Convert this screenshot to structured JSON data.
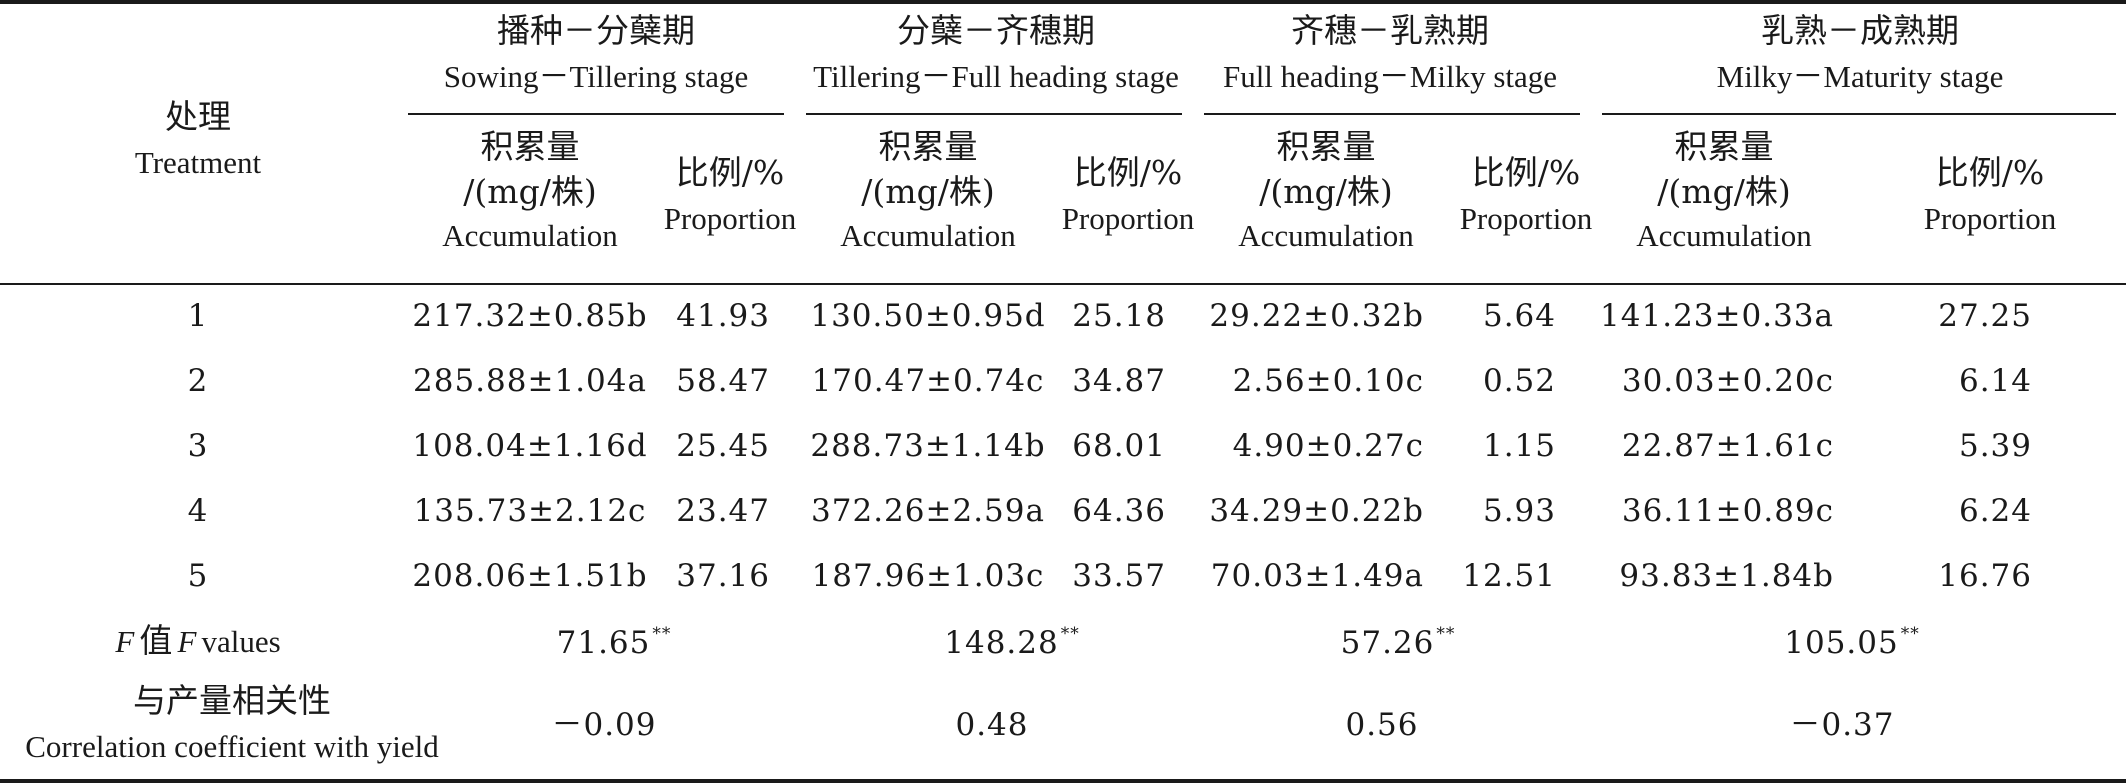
{
  "treatment_header": {
    "cn": "处理",
    "en": "Treatment"
  },
  "stages": [
    {
      "cn": "播种－分蘖期",
      "en": "Sowing－Tillering stage"
    },
    {
      "cn": "分蘖－齐穗期",
      "en": "Tillering－Full heading stage"
    },
    {
      "cn": "齐穗－乳熟期",
      "en": "Full heading－Milky stage"
    },
    {
      "cn": "乳熟－成熟期",
      "en": "Milky－Maturity stage"
    }
  ],
  "sub_headers": {
    "accumulation": {
      "cn": "积累量",
      "unit": "/(mg/株)",
      "en": "Accumulation"
    },
    "proportion": {
      "cn": "比例/%",
      "en": "Proportion"
    }
  },
  "rows": [
    {
      "treatment": "1",
      "cells": [
        "217.32±0.85b",
        "41.93",
        "130.50±0.95d",
        "25.18",
        "29.22±0.32b",
        "5.64",
        "141.23±0.33a",
        "27.25"
      ]
    },
    {
      "treatment": "2",
      "cells": [
        "285.88±1.04a",
        "58.47",
        "170.47±0.74c",
        "34.87",
        "2.56±0.10c",
        "0.52",
        "30.03±0.20c",
        "6.14"
      ]
    },
    {
      "treatment": "3",
      "cells": [
        "108.04±1.16d",
        "25.45",
        "288.73±1.14b",
        "68.01",
        "4.90±0.27c",
        "1.15",
        "22.87±1.61c",
        "5.39"
      ]
    },
    {
      "treatment": "4",
      "cells": [
        "135.73±2.12c",
        "23.47",
        "372.26±2.59a",
        "64.36",
        "34.29±0.22b",
        "5.93",
        "36.11±0.89c",
        "6.24"
      ]
    },
    {
      "treatment": "5",
      "cells": [
        "208.06±1.51b",
        "37.16",
        "187.96±1.03c",
        "33.57",
        "70.03±1.49a",
        "12.51",
        "93.83±1.84b",
        "16.76"
      ]
    }
  ],
  "f_values": {
    "label_italic_1": "F",
    "label_cn": "值",
    "label_italic_2": "F",
    "label_en": "values",
    "marker": "**",
    "values": [
      "71.65",
      "148.28",
      "57.26",
      "105.05"
    ]
  },
  "correlation": {
    "label_cn": "与产量相关性",
    "label_en": "Correlation coefficient with yield",
    "values": [
      "－0.09",
      "0.48",
      "0.56",
      "－0.37"
    ]
  }
}
